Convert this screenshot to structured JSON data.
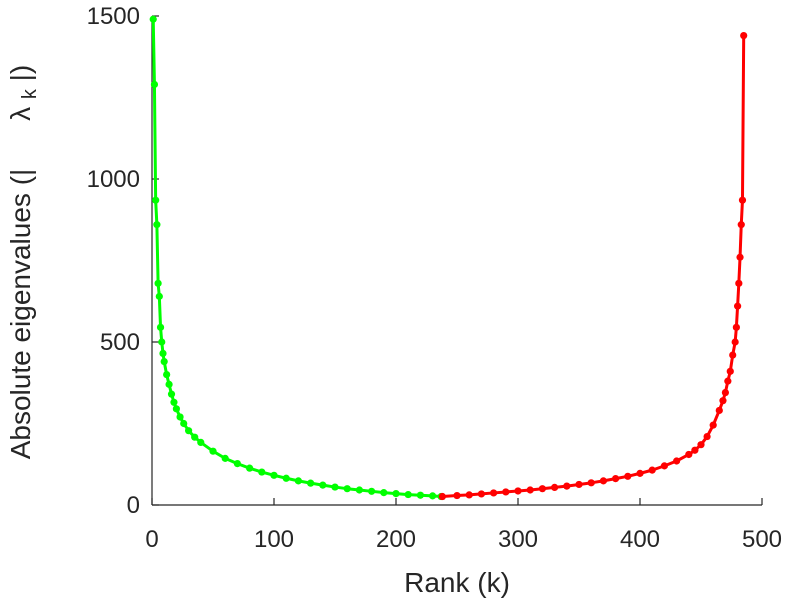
{
  "chart_data": {
    "type": "line",
    "title": "",
    "xlabel": "Rank (k)",
    "ylabel": "Absolute eigenvalues (|λk|)",
    "ylabel_parts": {
      "prefix": "Absolute eigenvalues (|",
      "symbol": "λ",
      "subscript": "k",
      "suffix": "|)"
    },
    "xlim": [
      0,
      500
    ],
    "ylim": [
      0,
      1500
    ],
    "xticks": [
      0,
      100,
      200,
      300,
      400,
      500
    ],
    "yticks": [
      0,
      500,
      1000,
      1500
    ],
    "grid": false,
    "legend": "none",
    "series": [
      {
        "color": "#00ff00",
        "marker": "dot",
        "x": [
          1,
          2,
          3,
          4,
          5,
          6,
          7,
          8,
          9,
          10,
          12,
          14,
          16,
          18,
          20,
          23,
          26,
          30,
          35,
          40,
          50,
          60,
          70,
          80,
          90,
          100,
          110,
          120,
          130,
          140,
          150,
          160,
          170,
          180,
          190,
          200,
          210,
          220,
          230,
          237
        ],
        "values": [
          1490,
          1290,
          935,
          860,
          680,
          640,
          545,
          500,
          465,
          440,
          400,
          370,
          340,
          315,
          295,
          270,
          250,
          228,
          208,
          192,
          165,
          143,
          127,
          113,
          101,
          91,
          82,
          74,
          67,
          61,
          55,
          50,
          46,
          42,
          38,
          35,
          32,
          30,
          28,
          26
        ]
      },
      {
        "color": "#ff0000",
        "marker": "dot",
        "x": [
          238,
          250,
          260,
          270,
          280,
          290,
          300,
          310,
          320,
          330,
          340,
          350,
          360,
          370,
          380,
          390,
          400,
          410,
          420,
          430,
          440,
          445,
          450,
          455,
          460,
          465,
          468,
          470,
          472,
          474,
          476,
          478,
          479,
          480,
          481,
          482,
          483,
          484,
          485
        ],
        "values": [
          26,
          29,
          31,
          34,
          37,
          40,
          43,
          46,
          50,
          54,
          58,
          63,
          68,
          74,
          81,
          88,
          97,
          107,
          120,
          135,
          155,
          168,
          185,
          210,
          245,
          290,
          320,
          345,
          380,
          410,
          460,
          500,
          545,
          610,
          680,
          760,
          860,
          935,
          1440
        ]
      }
    ]
  }
}
